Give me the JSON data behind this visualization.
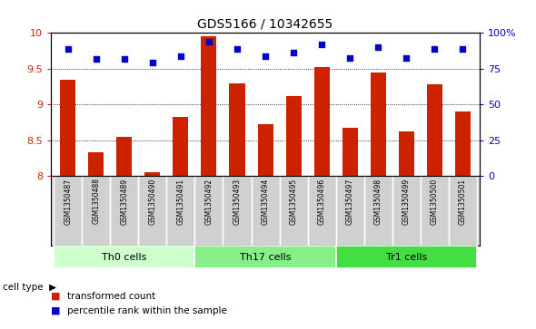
{
  "title": "GDS5166 / 10342655",
  "samples": [
    "GSM1350487",
    "GSM1350488",
    "GSM1350489",
    "GSM1350490",
    "GSM1350491",
    "GSM1350492",
    "GSM1350493",
    "GSM1350494",
    "GSM1350495",
    "GSM1350496",
    "GSM1350497",
    "GSM1350498",
    "GSM1350499",
    "GSM1350500",
    "GSM1350501"
  ],
  "bar_values": [
    9.35,
    8.33,
    8.55,
    8.05,
    8.83,
    9.95,
    9.3,
    8.73,
    9.12,
    9.52,
    8.67,
    9.45,
    8.62,
    9.28,
    8.9
  ],
  "dot_values": [
    9.77,
    9.64,
    9.64,
    9.58,
    9.68,
    9.88,
    9.77,
    9.67,
    9.72,
    9.84,
    9.65,
    9.8,
    9.65,
    9.77,
    9.77
  ],
  "bar_color": "#cc2200",
  "dot_color": "#0000cc",
  "ylim": [
    8.0,
    10.0
  ],
  "yticks": [
    8.0,
    8.5,
    9.0,
    9.5,
    10.0
  ],
  "ytick_labels": [
    "8",
    "8.5",
    "9",
    "9.5",
    "10"
  ],
  "y2lim": [
    0,
    100
  ],
  "y2ticks": [
    0,
    25,
    50,
    75,
    100
  ],
  "y2tick_labels": [
    "0",
    "25",
    "50",
    "75",
    "100%"
  ],
  "cell_groups": [
    {
      "label": "Th0 cells",
      "start": 0,
      "end": 5,
      "color": "#ccffcc"
    },
    {
      "label": "Th17 cells",
      "start": 5,
      "end": 10,
      "color": "#88ee88"
    },
    {
      "label": "Tr1 cells",
      "start": 10,
      "end": 15,
      "color": "#44dd44"
    }
  ],
  "cell_type_label": "cell type",
  "legend_bar_label": "transformed count",
  "legend_dot_label": "percentile rank within the sample",
  "sample_bg": "#d0d0d0",
  "plot_bg": "#ffffff",
  "fig_bg": "#ffffff"
}
